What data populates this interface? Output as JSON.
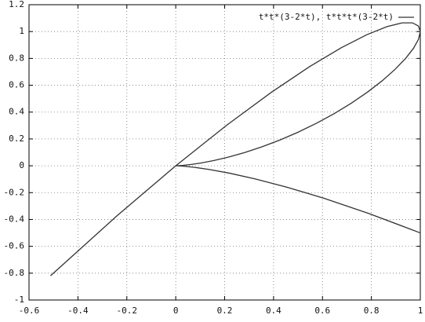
{
  "chart_data": {
    "type": "line",
    "x": [
      1,
      0.78975,
      0.608,
      0.45325,
      0.324,
      0.21875,
      0.136,
      0.07425,
      0.032,
      0.00775,
      0,
      0.00725,
      0.028,
      0.06075,
      0.104,
      0.15625,
      0.216,
      0.28175,
      0.352,
      0.42525,
      0.5,
      0.57475,
      0.648,
      0.71825,
      0.784,
      0.84375,
      0.896,
      0.93925,
      0.972,
      0.99275,
      1,
      0.99225,
      0.968,
      0.92575,
      0.864,
      0.78125,
      0.676,
      0.54675,
      0.392,
      0.21025,
      0,
      -0.24025,
      -0.512
    ],
    "series": [
      {
        "name": "t*t*(3-2*t), t*t*t*(3-2*t)",
        "color": "#333333",
        "values": [
          -0.5,
          -0.3554,
          -0.2432,
          -0.1586,
          -0.0972,
          -0.0547,
          -0.0272,
          -0.0111,
          -0.0032,
          -0.0004,
          0,
          0.0004,
          0.0028,
          0.0091,
          0.0208,
          0.0391,
          0.0648,
          0.0986,
          0.1408,
          0.1914,
          0.25,
          0.3161,
          0.3888,
          0.4669,
          0.5488,
          0.6328,
          0.7168,
          0.7984,
          0.8748,
          0.9431,
          1,
          1.0419,
          1.0648,
          1.0646,
          1.0368,
          0.9766,
          0.8788,
          0.7381,
          0.5488,
          0.3049,
          0,
          -0.3724,
          -0.8192
        ]
      }
    ],
    "xlim": [
      -0.6,
      1
    ],
    "xticks": [
      -0.6,
      -0.4,
      -0.2,
      0,
      0.2,
      0.4,
      0.6,
      0.8,
      1
    ],
    "ylim": [
      -1,
      1.2
    ],
    "yticks": [
      -1,
      -0.8,
      -0.6,
      -0.4,
      -0.2,
      0,
      0.2,
      0.4,
      0.6,
      0.8,
      1,
      1.2
    ],
    "grid": true,
    "legend": "top-right"
  }
}
